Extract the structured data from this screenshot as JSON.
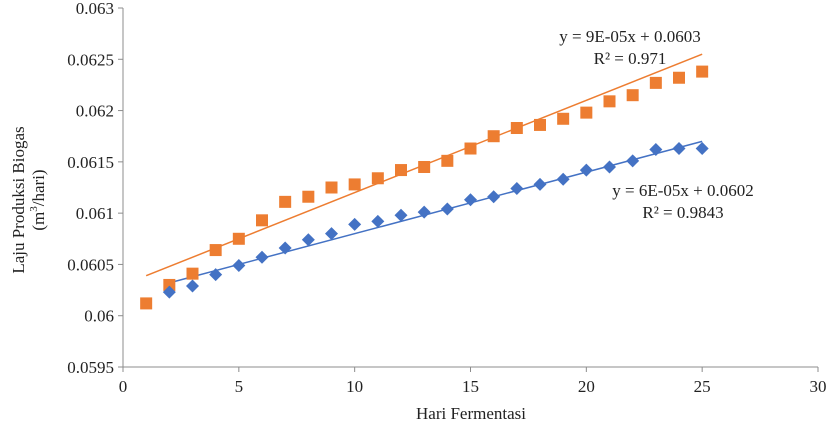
{
  "chart_data": {
    "type": "scatter",
    "xlabel": "Hari Fermentasi",
    "ylabel_line1": "Laju Produksi Biogas",
    "ylabel_line2_pre": "(m",
    "ylabel_line2_sup": "3",
    "ylabel_line2_post": "/hari)",
    "xlim": [
      0,
      30
    ],
    "ylim": [
      0.0595,
      0.063
    ],
    "x_ticks": [
      0,
      5,
      10,
      15,
      20,
      25,
      30
    ],
    "x_tick_labels": [
      "0",
      "5",
      "10",
      "15",
      "20",
      "25",
      "30"
    ],
    "y_ticks": [
      0.0595,
      0.06,
      0.0605,
      0.061,
      0.0615,
      0.062,
      0.0625,
      0.063
    ],
    "y_tick_labels": [
      "0.0595",
      "0.06",
      "0.0605",
      "0.061",
      "0.0615",
      "0.062",
      "0.0625",
      "0.063"
    ],
    "grid": false,
    "series": [
      {
        "marker": "square",
        "color": "#ED7D31",
        "x": [
          1,
          2,
          3,
          4,
          5,
          6,
          7,
          8,
          9,
          10,
          11,
          12,
          13,
          14,
          15,
          16,
          17,
          18,
          19,
          20,
          21,
          22,
          23,
          24,
          25
        ],
        "values": [
          0.06012,
          0.0603,
          0.06041,
          0.06064,
          0.06075,
          0.06093,
          0.06111,
          0.06116,
          0.06125,
          0.06128,
          0.06134,
          0.06142,
          0.06145,
          0.06151,
          0.06163,
          0.06175,
          0.06183,
          0.06186,
          0.06192,
          0.06198,
          0.06209,
          0.06215,
          0.06227,
          0.06232,
          0.06238
        ],
        "trendline": {
          "slope": 9e-05,
          "intercept": 0.0603
        },
        "equation": "y = 9E-05x + 0.0603",
        "r2": "R² = 0.971"
      },
      {
        "marker": "diamond",
        "color": "#4472C4",
        "x": [
          2,
          3,
          4,
          5,
          6,
          7,
          8,
          9,
          10,
          11,
          12,
          13,
          14,
          15,
          16,
          17,
          18,
          19,
          20,
          21,
          22,
          23,
          24,
          25
        ],
        "values": [
          0.06023,
          0.06029,
          0.0604,
          0.06049,
          0.06057,
          0.06066,
          0.06074,
          0.0608,
          0.06089,
          0.06092,
          0.06098,
          0.06101,
          0.06104,
          0.06113,
          0.06116,
          0.06124,
          0.06128,
          0.06133,
          0.06142,
          0.06145,
          0.06151,
          0.06162,
          0.06163,
          0.06163
        ],
        "trendline": {
          "slope": 6e-05,
          "intercept": 0.0602
        },
        "equation": "y = 6E-05x + 0.0602",
        "r2": "R² = 0.9843"
      }
    ]
  }
}
